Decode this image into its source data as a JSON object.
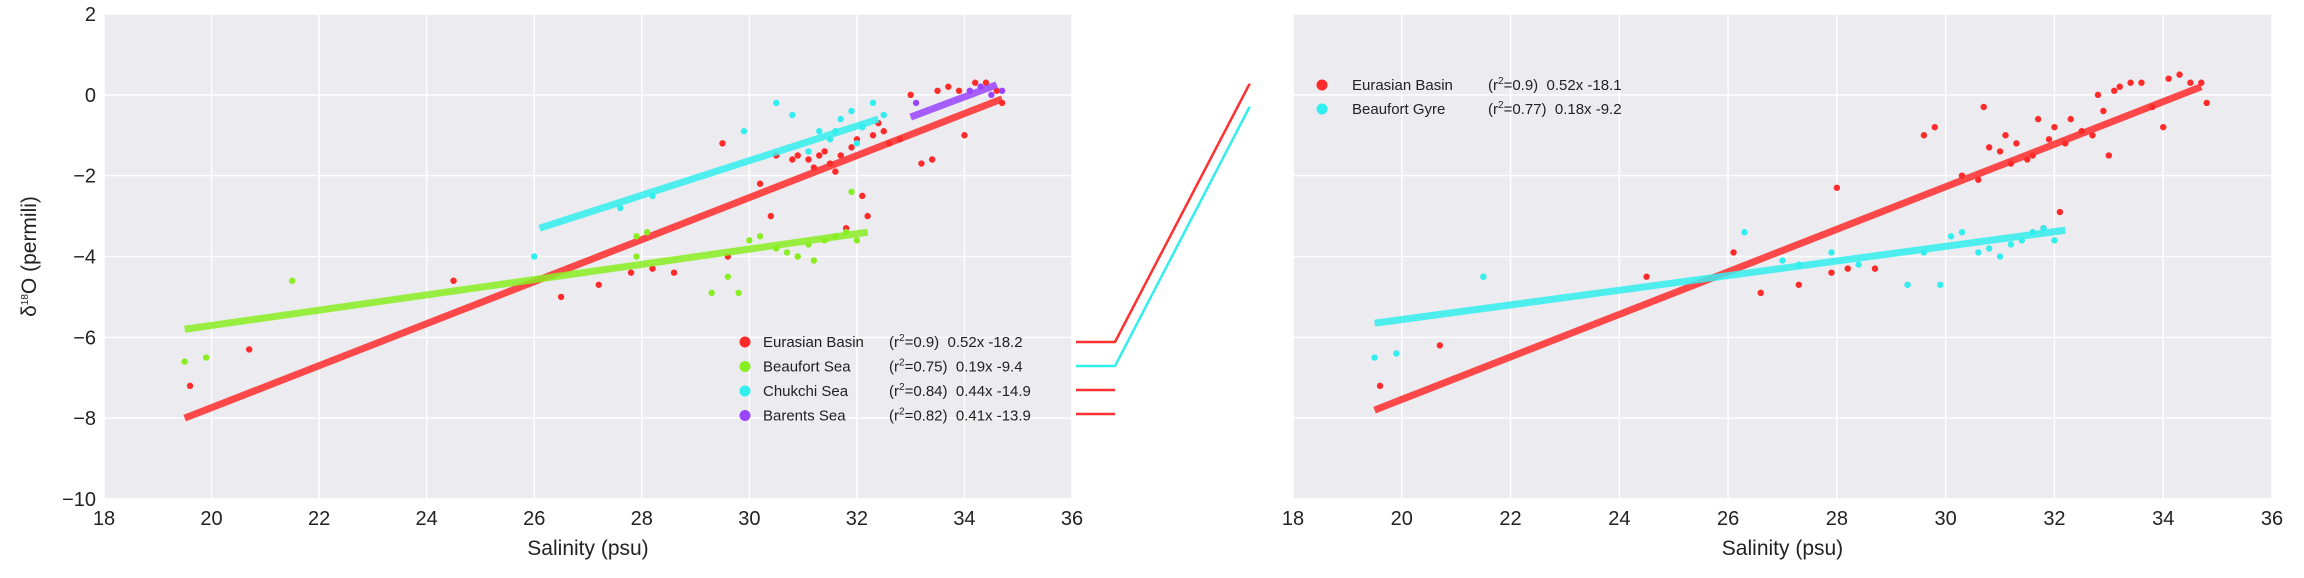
{
  "chart_data": [
    {
      "type": "scatter",
      "xlabel": "Salinity (psu)",
      "ylabel_prefix": "δ",
      "ylabel_sup": "18",
      "ylabel_suffix": "O (permili)",
      "xlim": [
        18,
        36
      ],
      "ylim": [
        -10,
        2
      ],
      "xticks": [
        "18",
        "20",
        "22",
        "24",
        "26",
        "28",
        "30",
        "32",
        "34",
        "36"
      ],
      "yticks": [
        "−10",
        "−8",
        "−6",
        "−4",
        "−2",
        "0",
        "2"
      ],
      "show_yticks": true,
      "grid": true,
      "background": "#ebebf0",
      "legend_placement": "lower-right",
      "series": [
        {
          "name": "Eurasian Basin",
          "r2": "0.9",
          "fit": "0.52x -18.2",
          "color": "#ff2b2b",
          "line": [
            [
              19.5,
              -8.0
            ],
            [
              34.7,
              -0.1
            ]
          ],
          "points": [
            [
              19.6,
              -7.2
            ],
            [
              20.7,
              -6.3
            ],
            [
              24.5,
              -4.6
            ],
            [
              26.5,
              -5.0
            ],
            [
              27.2,
              -4.7
            ],
            [
              27.8,
              -4.4
            ],
            [
              28.2,
              -4.3
            ],
            [
              28.6,
              -4.4
            ],
            [
              29.6,
              -4.0
            ],
            [
              29.5,
              -1.2
            ],
            [
              30.2,
              -2.2
            ],
            [
              30.4,
              -3.0
            ],
            [
              30.5,
              -1.5
            ],
            [
              30.9,
              -1.5
            ],
            [
              31.1,
              -1.6
            ],
            [
              31.3,
              -1.5
            ],
            [
              31.5,
              -1.7
            ],
            [
              31.6,
              -1.9
            ],
            [
              31.7,
              -1.5
            ],
            [
              31.8,
              -3.3
            ],
            [
              31.9,
              -1.3
            ],
            [
              32.0,
              -1.1
            ],
            [
              32.1,
              -2.5
            ],
            [
              32.2,
              -3.0
            ],
            [
              32.3,
              -1.0
            ],
            [
              32.5,
              -0.9
            ],
            [
              32.6,
              -1.2
            ],
            [
              32.8,
              -1.1
            ],
            [
              33.0,
              0.0
            ],
            [
              33.2,
              -1.7
            ],
            [
              33.4,
              -1.6
            ],
            [
              33.5,
              0.1
            ],
            [
              33.7,
              0.2
            ],
            [
              33.9,
              0.1
            ],
            [
              34.0,
              -1.0
            ],
            [
              34.2,
              0.3
            ],
            [
              34.4,
              0.3
            ],
            [
              34.6,
              0.1
            ],
            [
              34.7,
              -0.2
            ],
            [
              32.4,
              -0.7
            ],
            [
              31.2,
              -1.8
            ],
            [
              30.8,
              -1.6
            ],
            [
              31.4,
              -1.4
            ]
          ]
        },
        {
          "name": "Beaufort Sea",
          "r2": "0.75",
          "fit": "0.19x -9.4",
          "color": "#88ee22",
          "line": [
            [
              19.5,
              -5.8
            ],
            [
              32.2,
              -3.4
            ]
          ],
          "points": [
            [
              19.5,
              -6.6
            ],
            [
              19.9,
              -6.5
            ],
            [
              21.5,
              -4.6
            ],
            [
              27.9,
              -3.5
            ],
            [
              28.1,
              -3.4
            ],
            [
              27.9,
              -4.0
            ],
            [
              29.3,
              -4.9
            ],
            [
              29.6,
              -4.5
            ],
            [
              29.8,
              -4.9
            ],
            [
              30.0,
              -3.6
            ],
            [
              30.2,
              -3.5
            ],
            [
              30.5,
              -3.8
            ],
            [
              30.7,
              -3.9
            ],
            [
              30.9,
              -4.0
            ],
            [
              31.1,
              -3.7
            ],
            [
              31.2,
              -4.1
            ],
            [
              31.4,
              -3.6
            ],
            [
              31.6,
              -3.5
            ],
            [
              31.8,
              -3.4
            ],
            [
              31.9,
              -2.4
            ],
            [
              32.0,
              -3.6
            ]
          ]
        },
        {
          "name": "Chukchi Sea",
          "r2": "0.84",
          "fit": "0.44x -14.9",
          "color": "#33eeee",
          "line": [
            [
              26.1,
              -3.3
            ],
            [
              32.4,
              -0.6
            ]
          ],
          "points": [
            [
              26.0,
              -4.0
            ],
            [
              27.6,
              -2.8
            ],
            [
              28.2,
              -2.5
            ],
            [
              29.9,
              -0.9
            ],
            [
              30.5,
              -0.2
            ],
            [
              30.8,
              -0.5
            ],
            [
              31.1,
              -1.4
            ],
            [
              31.3,
              -0.9
            ],
            [
              31.5,
              -1.1
            ],
            [
              31.7,
              -0.6
            ],
            [
              31.9,
              -0.4
            ],
            [
              32.1,
              -0.8
            ],
            [
              32.3,
              -0.2
            ],
            [
              32.5,
              -0.5
            ],
            [
              32.0,
              -1.2
            ],
            [
              31.6,
              -0.9
            ]
          ]
        },
        {
          "name": "Barents Sea",
          "r2": "0.82",
          "fit": "0.41x -13.9",
          "color": "#9944ff",
          "line": [
            [
              33.0,
              -0.55
            ],
            [
              34.6,
              0.25
            ]
          ],
          "points": [
            [
              33.1,
              -0.2
            ],
            [
              34.1,
              0.1
            ],
            [
              34.3,
              0.2
            ],
            [
              34.5,
              0.0
            ],
            [
              34.7,
              0.1
            ]
          ]
        }
      ]
    },
    {
      "type": "scatter",
      "xlabel": "Salinity (psu)",
      "xlim": [
        18,
        36
      ],
      "ylim": [
        -10,
        2
      ],
      "xticks": [
        "18",
        "20",
        "22",
        "24",
        "26",
        "28",
        "30",
        "32",
        "34",
        "36"
      ],
      "show_yticks": false,
      "grid": true,
      "background": "#ebebf0",
      "legend_placement": "top-left",
      "series": [
        {
          "name": "Eurasian Basin",
          "r2": "0.9",
          "fit": "0.52x -18.1",
          "color": "#ff2b2b",
          "line": [
            [
              19.5,
              -7.8
            ],
            [
              34.7,
              0.2
            ]
          ],
          "points": [
            [
              19.6,
              -7.2
            ],
            [
              20.7,
              -6.2
            ],
            [
              24.5,
              -4.5
            ],
            [
              26.1,
              -3.9
            ],
            [
              26.6,
              -4.9
            ],
            [
              27.3,
              -4.7
            ],
            [
              27.9,
              -4.4
            ],
            [
              28.2,
              -4.3
            ],
            [
              28.7,
              -4.3
            ],
            [
              28.0,
              -2.3
            ],
            [
              29.6,
              -1.0
            ],
            [
              29.8,
              -0.8
            ],
            [
              30.3,
              -2.0
            ],
            [
              30.6,
              -2.1
            ],
            [
              30.8,
              -1.3
            ],
            [
              31.0,
              -1.4
            ],
            [
              31.1,
              -1.0
            ],
            [
              31.2,
              -1.7
            ],
            [
              31.3,
              -1.2
            ],
            [
              31.5,
              -1.6
            ],
            [
              31.6,
              -1.5
            ],
            [
              31.7,
              -0.6
            ],
            [
              31.8,
              -3.3
            ],
            [
              31.9,
              -1.1
            ],
            [
              32.0,
              -0.8
            ],
            [
              32.1,
              -2.9
            ],
            [
              32.2,
              -1.2
            ],
            [
              32.3,
              -0.6
            ],
            [
              32.5,
              -0.9
            ],
            [
              32.7,
              -1.0
            ],
            [
              32.9,
              -0.4
            ],
            [
              33.0,
              -1.5
            ],
            [
              33.1,
              0.1
            ],
            [
              33.2,
              0.2
            ],
            [
              33.4,
              0.3
            ],
            [
              33.6,
              0.3
            ],
            [
              33.8,
              -0.3
            ],
            [
              34.0,
              -0.8
            ],
            [
              34.1,
              0.4
            ],
            [
              34.3,
              0.5
            ],
            [
              34.5,
              0.3
            ],
            [
              34.7,
              0.3
            ],
            [
              34.8,
              -0.2
            ],
            [
              30.7,
              -0.3
            ],
            [
              32.8,
              0.0
            ]
          ]
        },
        {
          "name": "Beaufort Gyre",
          "r2": "0.77",
          "fit": "0.18x -9.2",
          "color": "#33eeee",
          "line": [
            [
              19.5,
              -5.65
            ],
            [
              32.2,
              -3.35
            ]
          ],
          "points": [
            [
              19.5,
              -6.5
            ],
            [
              19.9,
              -6.4
            ],
            [
              21.5,
              -4.5
            ],
            [
              26.3,
              -3.4
            ],
            [
              27.0,
              -4.1
            ],
            [
              27.3,
              -4.2
            ],
            [
              27.9,
              -3.9
            ],
            [
              28.4,
              -4.2
            ],
            [
              29.3,
              -4.7
            ],
            [
              29.6,
              -3.9
            ],
            [
              29.9,
              -4.7
            ],
            [
              30.1,
              -3.5
            ],
            [
              30.3,
              -3.4
            ],
            [
              30.6,
              -3.9
            ],
            [
              30.8,
              -3.8
            ],
            [
              31.0,
              -4.0
            ],
            [
              31.2,
              -3.7
            ],
            [
              31.4,
              -3.6
            ],
            [
              31.6,
              -3.4
            ],
            [
              31.8,
              -3.3
            ],
            [
              32.0,
              -3.6
            ]
          ]
        }
      ]
    }
  ],
  "connectors": [
    {
      "color": "#ff3030"
    },
    {
      "color": "#33eeee"
    },
    {
      "color": "#ff3030"
    },
    {
      "color": "#ff3030"
    }
  ]
}
